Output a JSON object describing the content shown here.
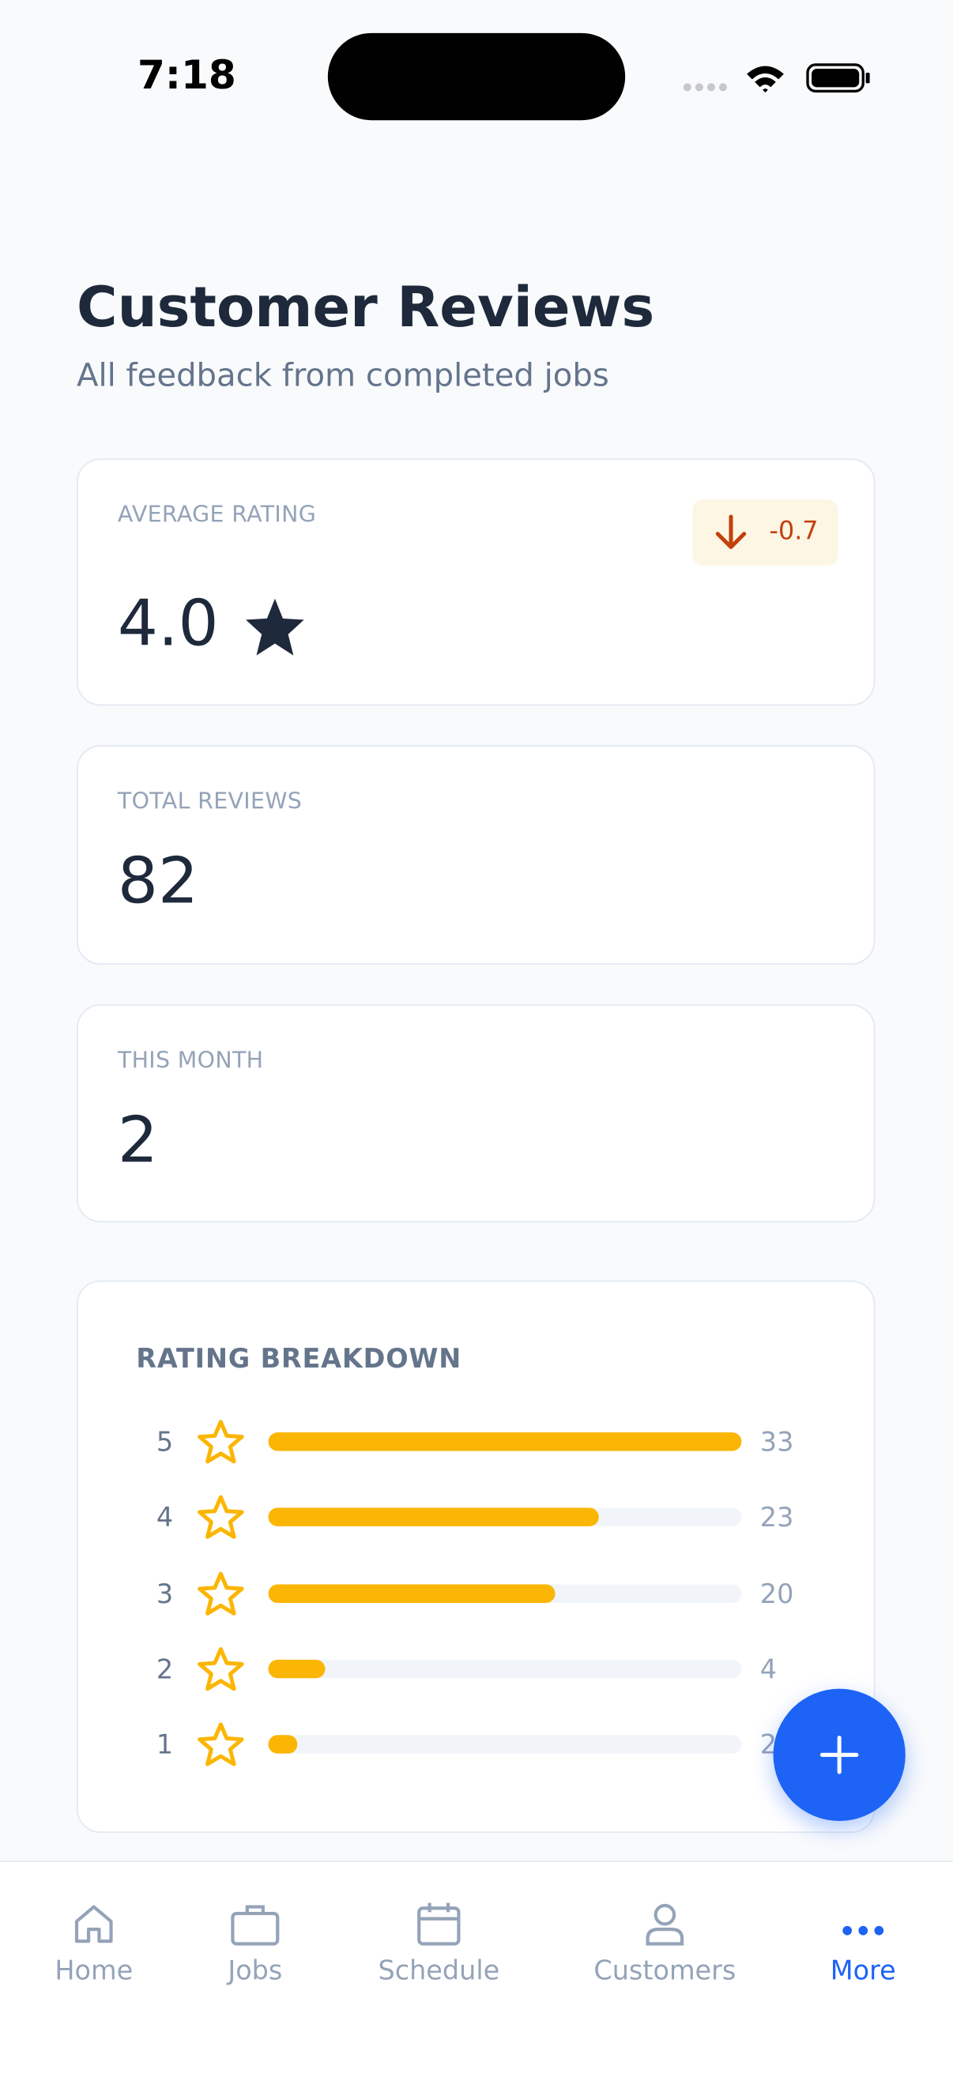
{
  "status_bar": {
    "time": "7:18"
  },
  "header": {
    "title": "Customer Reviews",
    "subtitle": "All feedback from completed jobs"
  },
  "cards": [
    {
      "label": "AVERAGE RATING",
      "value": "4.0",
      "delta": "-0.7"
    },
    {
      "label": "TOTAL REVIEWS",
      "value": "82"
    },
    {
      "label": "THIS MONTH",
      "value": "2"
    }
  ],
  "breakdown": {
    "title": "RATING BREAKDOWN",
    "rows": [
      {
        "stars": 5,
        "count": 33
      },
      {
        "stars": 4,
        "count": 23
      },
      {
        "stars": 3,
        "count": 20
      },
      {
        "stars": 2,
        "count": 4
      },
      {
        "stars": 1,
        "count": 2
      }
    ]
  },
  "nav": [
    "Home",
    "Jobs",
    "Schedule",
    "Customers",
    "More"
  ]
}
